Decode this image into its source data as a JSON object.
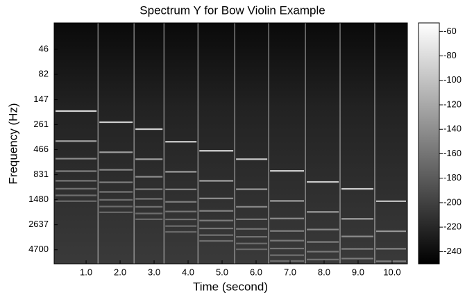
{
  "chart_data": {
    "type": "spectrogram",
    "title": "Spectrum  Y  for Bow Violin Example",
    "xlabel": "Time (second)",
    "ylabel": "Frequency (Hz)",
    "xlim": [
      0.06,
      10.45
    ],
    "xticks": [
      {
        "value": 1,
        "label": "1.0"
      },
      {
        "value": 2,
        "label": "2.0"
      },
      {
        "value": 3,
        "label": "3.0"
      },
      {
        "value": 4,
        "label": "4.0"
      },
      {
        "value": 5,
        "label": "5.0"
      },
      {
        "value": 6,
        "label": "6.0"
      },
      {
        "value": 7,
        "label": "7.0"
      },
      {
        "value": 8,
        "label": "8.0"
      },
      {
        "value": 9,
        "label": "9.0"
      },
      {
        "value": 10,
        "label": "10.0"
      }
    ],
    "ylim": [
      25,
      6500
    ],
    "yscale": "log",
    "yinverted": true,
    "yticks": [
      46,
      82,
      147,
      261,
      466,
      831,
      1480,
      2637,
      4700
    ],
    "clim": [
      -250,
      -53
    ],
    "cticks": [
      -60,
      -80,
      -100,
      -120,
      -140,
      -160,
      -180,
      -200,
      -220,
      -240
    ],
    "segments": [
      {
        "x": [
          0.06,
          1.35
        ],
        "y": 191,
        "value": -85
      },
      {
        "x": [
          1.35,
          2.41
        ],
        "y": 247,
        "value": -90
      },
      {
        "x": [
          2.41,
          3.29
        ],
        "y": 290,
        "value": -88
      },
      {
        "x": [
          3.29,
          4.29
        ],
        "y": 388,
        "value": -92
      },
      {
        "x": [
          4.29,
          5.37
        ],
        "y": 478,
        "value": -85
      },
      {
        "x": [
          5.37,
          6.37
        ],
        "y": 580,
        "value": -95
      },
      {
        "x": [
          6.37,
          7.45
        ],
        "y": 760,
        "value": -90
      },
      {
        "x": [
          7.45,
          8.47
        ],
        "y": 980,
        "value": -95
      },
      {
        "x": [
          8.47,
          9.49
        ],
        "y": 1150,
        "value": -92
      },
      {
        "x": [
          9.49,
          10.45
        ],
        "y": 1530,
        "value": -100
      }
    ]
  }
}
